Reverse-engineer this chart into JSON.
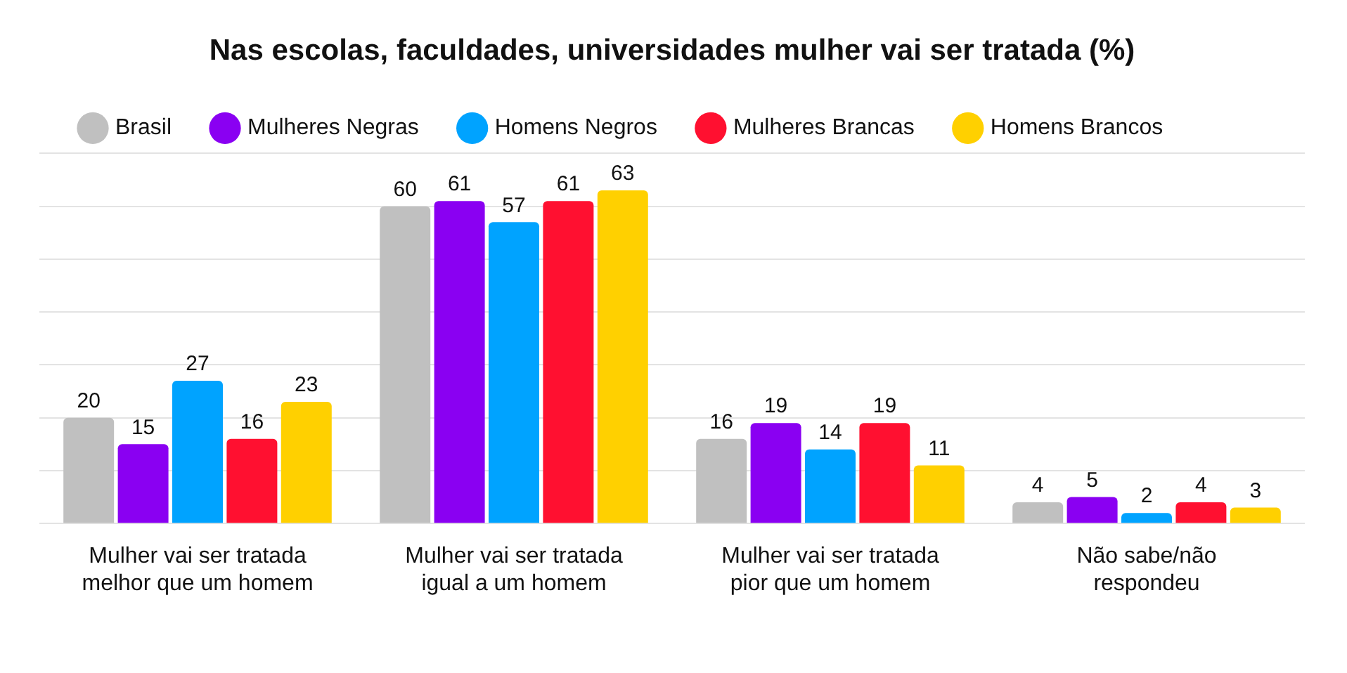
{
  "chart_data": {
    "type": "bar",
    "title": "Nas escolas, faculdades, universidades mulher vai ser tratada (%)",
    "categories": [
      "Mulher vai ser tratada melhor que um homem",
      "Mulher vai ser tratada igual a um homem",
      "Mulher vai ser tratada pior que um homem",
      "Não sabe/não respondeu"
    ],
    "series": [
      {
        "name": "Brasil",
        "color": "#c0c0c0",
        "values": [
          20,
          60,
          16,
          4
        ]
      },
      {
        "name": "Mulheres Negras",
        "color": "#8a00f2",
        "values": [
          15,
          61,
          19,
          5
        ]
      },
      {
        "name": "Homens Negros",
        "color": "#00a3ff",
        "values": [
          27,
          57,
          14,
          2
        ]
      },
      {
        "name": "Mulheres Brancas",
        "color": "#ff1030",
        "values": [
          16,
          61,
          19,
          4
        ]
      },
      {
        "name": "Homens Brancos",
        "color": "#ffd000",
        "values": [
          23,
          63,
          11,
          3
        ]
      }
    ],
    "tick_labels": "x",
    "grid": "y",
    "legend": "top left",
    "data_labels": true
  }
}
